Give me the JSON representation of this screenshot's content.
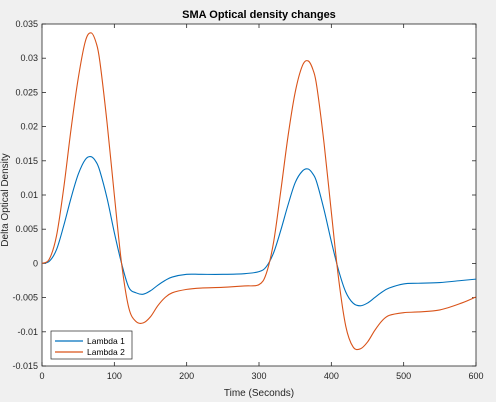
{
  "chart_data": {
    "type": "line",
    "title": "SMA Optical density changes",
    "xlabel": "Time (Seconds)",
    "ylabel": "Delta Optical Density",
    "xlim": [
      0,
      600
    ],
    "ylim": [
      -0.015,
      0.035
    ],
    "x_ticks": [
      0,
      100,
      200,
      300,
      400,
      500,
      600
    ],
    "x_tick_labels": [
      "0",
      "100",
      "200",
      "300",
      "400",
      "500",
      "600"
    ],
    "y_ticks": [
      -0.015,
      -0.01,
      -0.005,
      0,
      0.005,
      0.01,
      0.015,
      0.02,
      0.025,
      0.03,
      0.035
    ],
    "y_tick_labels": [
      "-0.015",
      "-0.01",
      "-0.005",
      "0",
      "0.005",
      "0.01",
      "0.015",
      "0.02",
      "0.025",
      "0.03",
      "0.035"
    ],
    "grid": false,
    "legend_position": "bottom-left",
    "x": [
      0,
      10,
      20,
      30,
      40,
      50,
      60,
      68,
      75,
      80,
      90,
      100,
      110,
      120,
      130,
      140,
      150,
      160,
      170,
      180,
      200,
      220,
      250,
      280,
      300,
      310,
      320,
      330,
      340,
      350,
      360,
      368,
      375,
      380,
      390,
      400,
      410,
      420,
      430,
      440,
      450,
      460,
      470,
      480,
      500,
      520,
      550,
      580,
      600
    ],
    "series": [
      {
        "name": "Lambda 1",
        "color": "#0072bd",
        "values": [
          0,
          0.0003,
          0.002,
          0.0055,
          0.0095,
          0.013,
          0.0152,
          0.0156,
          0.0148,
          0.0135,
          0.0095,
          0.0045,
          0,
          -0.0035,
          -0.0043,
          -0.0045,
          -0.004,
          -0.0032,
          -0.0025,
          -0.002,
          -0.0016,
          -0.0016,
          -0.0016,
          -0.0015,
          -0.0012,
          -0.0005,
          0.0015,
          0.0048,
          0.0085,
          0.0118,
          0.0135,
          0.0138,
          0.013,
          0.0118,
          0.0078,
          0.0032,
          -0.001,
          -0.0042,
          -0.0058,
          -0.0062,
          -0.0058,
          -0.005,
          -0.0042,
          -0.0036,
          -0.003,
          -0.0029,
          -0.0028,
          -0.0025,
          -0.0023
        ]
      },
      {
        "name": "Lambda 2",
        "color": "#d95319",
        "values": [
          0,
          0.0006,
          0.004,
          0.011,
          0.0195,
          0.027,
          0.0325,
          0.0337,
          0.0322,
          0.0295,
          0.0205,
          0.01,
          0,
          -0.0065,
          -0.0085,
          -0.0087,
          -0.0078,
          -0.0062,
          -0.005,
          -0.0043,
          -0.0038,
          -0.0036,
          -0.0035,
          -0.0033,
          -0.0031,
          -0.0015,
          0.003,
          0.0105,
          0.0185,
          0.025,
          0.0289,
          0.0296,
          0.0282,
          0.0258,
          0.0175,
          0.0075,
          -0.0022,
          -0.0092,
          -0.0122,
          -0.0125,
          -0.0115,
          -0.0098,
          -0.0084,
          -0.0076,
          -0.0072,
          -0.0071,
          -0.0068,
          -0.0058,
          -0.0049
        ]
      }
    ]
  }
}
